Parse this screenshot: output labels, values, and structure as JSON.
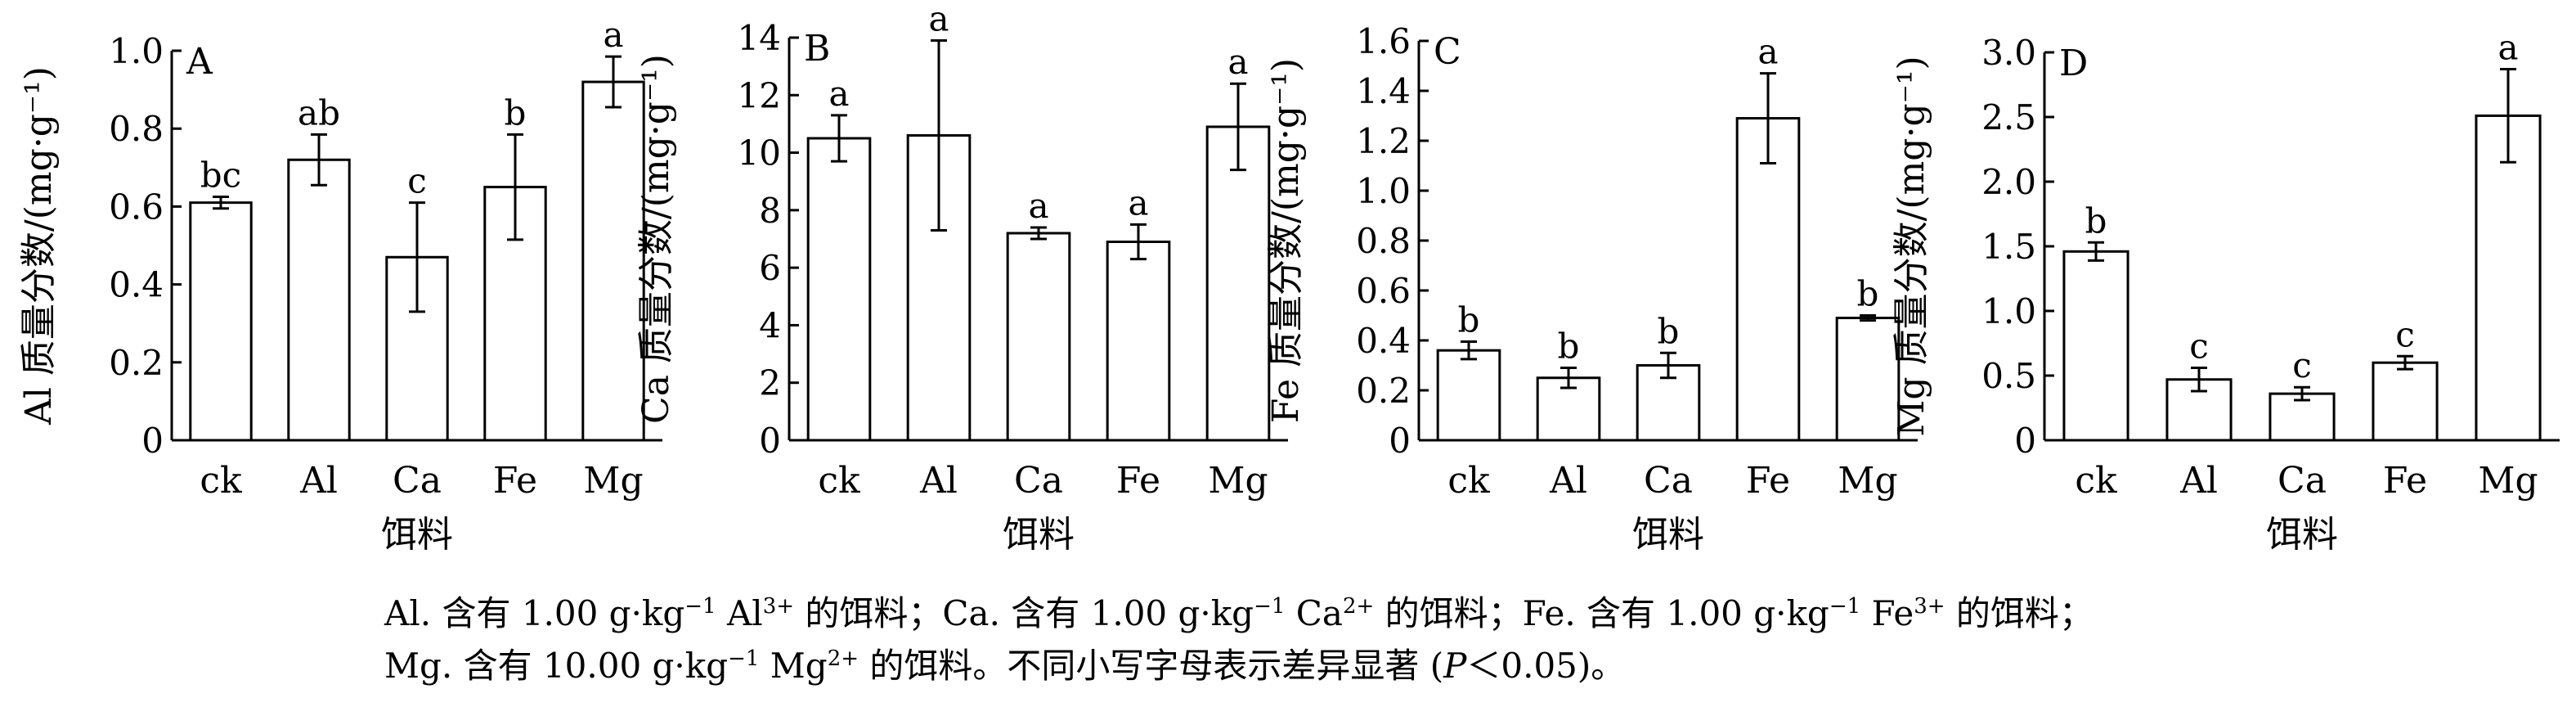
{
  "chart_data": [
    {
      "type": "bar",
      "panel_label": "A",
      "categories": [
        "ck",
        "Al",
        "Ca",
        "Fe",
        "Mg"
      ],
      "values": [
        0.61,
        0.72,
        0.47,
        0.65,
        0.92
      ],
      "errors": [
        0.015,
        0.065,
        0.14,
        0.135,
        0.065
      ],
      "letters": [
        "bc",
        "ab",
        "c",
        "b",
        "a"
      ],
      "xlabel": "饵料",
      "ylabel": "Al 质量分数/(mg·g⁻¹)",
      "ylim": [
        0,
        1.0
      ],
      "yticks": [
        0,
        0.2,
        0.4,
        0.6,
        0.8,
        1.0
      ],
      "ytick_labels": [
        "0",
        "0.2",
        "0.4",
        "0.6",
        "0.8",
        "1.0"
      ]
    },
    {
      "type": "bar",
      "panel_label": "B",
      "categories": [
        "ck",
        "Al",
        "Ca",
        "Fe",
        "Mg"
      ],
      "values": [
        10.5,
        10.6,
        7.2,
        6.9,
        10.9
      ],
      "errors": [
        0.8,
        3.3,
        0.2,
        0.6,
        1.5
      ],
      "letters": [
        "a",
        "a",
        "a",
        "a",
        "a"
      ],
      "xlabel": "饵料",
      "ylabel": "Ca 质量分数/(mg·g⁻¹)",
      "ylim": [
        0,
        14
      ],
      "yticks": [
        0,
        2,
        4,
        6,
        8,
        10,
        12,
        14
      ],
      "ytick_labels": [
        "0",
        "2",
        "4",
        "6",
        "8",
        "10",
        "12",
        "14"
      ]
    },
    {
      "type": "bar",
      "panel_label": "C",
      "categories": [
        "ck",
        "Al",
        "Ca",
        "Fe",
        "Mg"
      ],
      "values": [
        0.36,
        0.25,
        0.3,
        1.29,
        0.49
      ],
      "errors": [
        0.035,
        0.04,
        0.05,
        0.18,
        0.01
      ],
      "letters": [
        "b",
        "b",
        "b",
        "a",
        "b"
      ],
      "xlabel": "饵料",
      "ylabel": "Fe 质量分数/(mg·g⁻¹)",
      "ylim": [
        0,
        1.6
      ],
      "yticks": [
        0,
        0.2,
        0.4,
        0.6,
        0.8,
        1.0,
        1.2,
        1.4,
        1.6
      ],
      "ytick_labels": [
        "0",
        "0.2",
        "0.4",
        "0.6",
        "0.8",
        "1.0",
        "1.2",
        "1.4",
        "1.6"
      ]
    },
    {
      "type": "bar",
      "panel_label": "D",
      "categories": [
        "ck",
        "Al",
        "Ca",
        "Fe",
        "Mg"
      ],
      "values": [
        1.46,
        0.47,
        0.36,
        0.6,
        2.51
      ],
      "errors": [
        0.07,
        0.09,
        0.05,
        0.05,
        0.36
      ],
      "letters": [
        "b",
        "c",
        "c",
        "c",
        "a"
      ],
      "xlabel": "饵料",
      "ylabel": "Mg 质量分数/(mg·g⁻¹)",
      "ylim": [
        0,
        3.0
      ],
      "yticks": [
        0,
        0.5,
        1.0,
        1.5,
        2.0,
        2.5,
        3.0
      ],
      "ytick_labels": [
        "0",
        "0.5",
        "1.0",
        "1.5",
        "2.0",
        "2.5",
        "3.0"
      ]
    }
  ],
  "caption": {
    "line1": [
      {
        "t": "Al. 含有 1.00 g·kg"
      },
      {
        "t": "−1",
        "sup": true
      },
      {
        "t": " Al"
      },
      {
        "t": "3+",
        "sup": true
      },
      {
        "t": " 的饵料；Ca. 含有 1.00 g·kg"
      },
      {
        "t": "−1",
        "sup": true
      },
      {
        "t": " Ca"
      },
      {
        "t": "2+",
        "sup": true
      },
      {
        "t": " 的饵料；Fe. 含有 1.00 g·kg"
      },
      {
        "t": "−1",
        "sup": true
      },
      {
        "t": " Fe"
      },
      {
        "t": "3+",
        "sup": true
      },
      {
        "t": " 的饵料；"
      }
    ],
    "line2": [
      {
        "t": "Mg. 含有 10.00 g·kg"
      },
      {
        "t": "−1",
        "sup": true
      },
      {
        "t": " Mg"
      },
      {
        "t": "2+",
        "sup": true
      },
      {
        "t": " 的饵料。不同小写字母表示差异显著 ("
      },
      {
        "t": "P",
        "it": true
      },
      {
        "t": "＜0.05)。"
      }
    ]
  }
}
